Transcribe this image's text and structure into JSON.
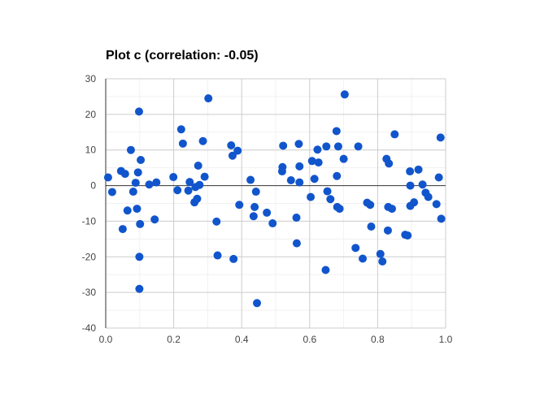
{
  "chart_data": {
    "type": "scatter",
    "title": "Plot c (correlation: -0.05)",
    "xlabel": "",
    "ylabel": "",
    "xlim": [
      0.0,
      1.0
    ],
    "ylim": [
      -40,
      30
    ],
    "x_ticks": [
      "0.0",
      "0.2",
      "0.4",
      "0.6",
      "0.8",
      "1.0"
    ],
    "y_ticks": [
      "30",
      "20",
      "10",
      "0",
      "-10",
      "-20",
      "-30",
      "-40"
    ],
    "grid": true,
    "legend": "none",
    "series": [
      {
        "color": "#1155cc",
        "points": [
          [
            0.007,
            2.3
          ],
          [
            0.019,
            -1.8
          ],
          [
            0.045,
            4.1
          ],
          [
            0.05,
            -12.2
          ],
          [
            0.057,
            3.3
          ],
          [
            0.064,
            -7.0
          ],
          [
            0.074,
            10.0
          ],
          [
            0.081,
            -1.7
          ],
          [
            0.088,
            0.8
          ],
          [
            0.092,
            -6.5
          ],
          [
            0.095,
            3.7
          ],
          [
            0.098,
            20.8
          ],
          [
            0.099,
            -20.0
          ],
          [
            0.099,
            -29.0
          ],
          [
            0.101,
            -10.8
          ],
          [
            0.103,
            7.2
          ],
          [
            0.128,
            0.3
          ],
          [
            0.144,
            -9.5
          ],
          [
            0.149,
            0.9
          ],
          [
            0.199,
            2.4
          ],
          [
            0.211,
            -1.3
          ],
          [
            0.222,
            15.8
          ],
          [
            0.227,
            11.8
          ],
          [
            0.243,
            -1.4
          ],
          [
            0.247,
            1.0
          ],
          [
            0.261,
            -4.7
          ],
          [
            0.264,
            -0.4
          ],
          [
            0.269,
            -3.7
          ],
          [
            0.272,
            5.6
          ],
          [
            0.276,
            0.2
          ],
          [
            0.286,
            12.5
          ],
          [
            0.291,
            2.5
          ],
          [
            0.302,
            24.5
          ],
          [
            0.326,
            -10.1
          ],
          [
            0.329,
            -19.6
          ],
          [
            0.369,
            11.3
          ],
          [
            0.373,
            8.4
          ],
          [
            0.376,
            -20.6
          ],
          [
            0.388,
            9.8
          ],
          [
            0.393,
            -5.4
          ],
          [
            0.426,
            1.6
          ],
          [
            0.435,
            -8.6
          ],
          [
            0.438,
            -6.0
          ],
          [
            0.442,
            -1.7
          ],
          [
            0.445,
            -33.0
          ],
          [
            0.474,
            -7.6
          ],
          [
            0.491,
            -10.6
          ],
          [
            0.519,
            4.0
          ],
          [
            0.52,
            5.2
          ],
          [
            0.522,
            11.2
          ],
          [
            0.545,
            1.5
          ],
          [
            0.561,
            -9.0
          ],
          [
            0.562,
            -16.2
          ],
          [
            0.568,
            11.7
          ],
          [
            0.57,
            5.4
          ],
          [
            0.57,
            0.9
          ],
          [
            0.603,
            -3.2
          ],
          [
            0.607,
            6.9
          ],
          [
            0.614,
            1.9
          ],
          [
            0.623,
            10.1
          ],
          [
            0.626,
            6.5
          ],
          [
            0.647,
            -23.7
          ],
          [
            0.649,
            11.0
          ],
          [
            0.652,
            -1.6
          ],
          [
            0.661,
            -3.8
          ],
          [
            0.679,
            15.3
          ],
          [
            0.68,
            2.7
          ],
          [
            0.684,
            11.0
          ],
          [
            0.681,
            -6.0
          ],
          [
            0.688,
            -6.5
          ],
          [
            0.7,
            7.5
          ],
          [
            0.703,
            25.6
          ],
          [
            0.735,
            -17.5
          ],
          [
            0.743,
            11.0
          ],
          [
            0.756,
            -20.5
          ],
          [
            0.769,
            -4.8
          ],
          [
            0.778,
            -5.4
          ],
          [
            0.781,
            -11.5
          ],
          [
            0.808,
            -19.2
          ],
          [
            0.814,
            -21.3
          ],
          [
            0.826,
            7.5
          ],
          [
            0.83,
            -12.6
          ],
          [
            0.831,
            -6.0
          ],
          [
            0.833,
            6.2
          ],
          [
            0.842,
            -6.5
          ],
          [
            0.85,
            14.4
          ],
          [
            0.881,
            -13.8
          ],
          [
            0.888,
            -14.0
          ],
          [
            0.895,
            4.0
          ],
          [
            0.896,
            0.0
          ],
          [
            0.896,
            -5.7
          ],
          [
            0.907,
            -4.7
          ],
          [
            0.92,
            4.5
          ],
          [
            0.932,
            0.3
          ],
          [
            0.941,
            -2.0
          ],
          [
            0.949,
            -3.2
          ],
          [
            0.973,
            -5.2
          ],
          [
            0.98,
            2.3
          ],
          [
            0.985,
            13.5
          ],
          [
            0.987,
            -9.3
          ]
        ]
      }
    ]
  }
}
